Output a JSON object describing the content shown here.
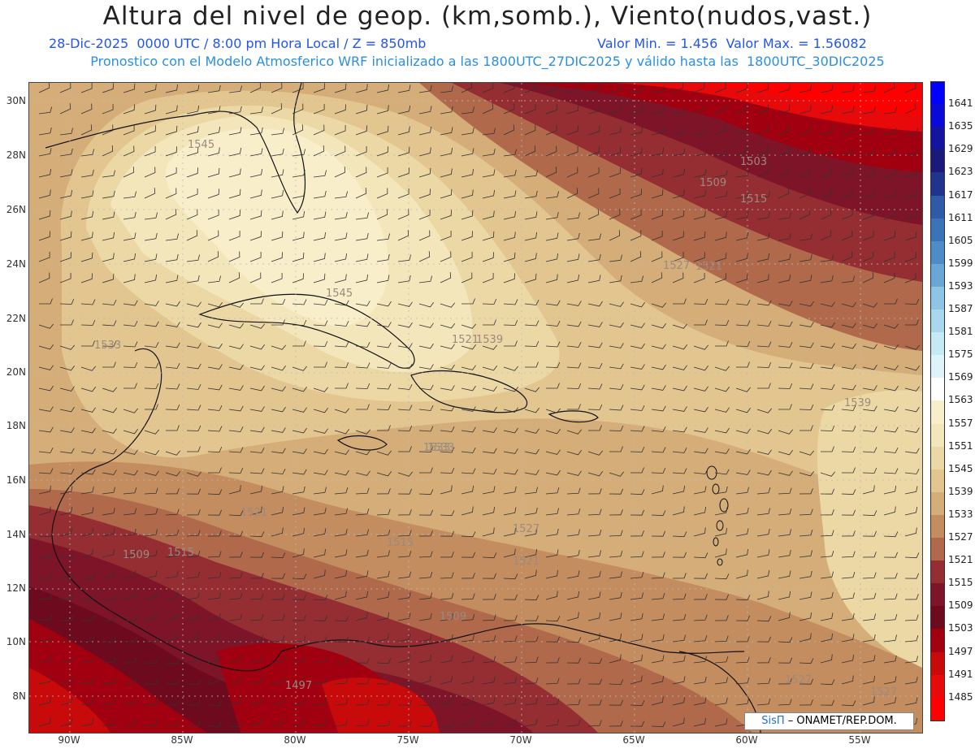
{
  "header": {
    "title": "Altura del nivel de geop. (km,somb.), Viento(nudos,vast.)",
    "line1_left": "28-Dic-2025  0000 UTC / 8:00 pm Hora Local / Z = 850mb",
    "line1_right": "Valor Min. = 1.456  Valor Max. = 1.56082",
    "line2": "Pronostico con el Modelo Atmosferico WRF inicializado a las 1800UTC_27DIC2025 y válido hasta las  1800UTC_30DIC2025"
  },
  "map": {
    "lat_labels": [
      "30N",
      "28N",
      "26N",
      "24N",
      "22N",
      "20N",
      "18N",
      "16N",
      "14N",
      "12N",
      "10N",
      "8N"
    ],
    "lon_labels": [
      "90W",
      "85W",
      "80W",
      "75W",
      "70W",
      "65W",
      "60W",
      "55W"
    ],
    "contour_labels": [
      "1545",
      "1545",
      "1539",
      "1539",
      "1533",
      "1533",
      "1527",
      "1527",
      "1521",
      "1521",
      "1521",
      "1515",
      "1515",
      "1515",
      "1509",
      "1509",
      "1509",
      "1503",
      "1497",
      "1527",
      "1527",
      "1533",
      "1521"
    ],
    "credit_brand": "SisΠ",
    "credit_text": "– ONAMET/REP.DOM."
  },
  "colorbar": {
    "levels": [
      "1641",
      "1635",
      "1629",
      "1623",
      "1617",
      "1611",
      "1605",
      "1599",
      "1593",
      "1587",
      "1581",
      "1575",
      "1569",
      "1563",
      "1557",
      "1551",
      "1545",
      "1539",
      "1533",
      "1527",
      "1521",
      "1515",
      "1509",
      "1503",
      "1497",
      "1491",
      "1485"
    ],
    "colors": [
      "#0000ff",
      "#0a0ad8",
      "#14149e",
      "#1a1a7a",
      "#22338c",
      "#2f5aa8",
      "#3c72b8",
      "#4e8cc8",
      "#6aa6d6",
      "#8ec4e4",
      "#a9d8ee",
      "#c5eaf4",
      "#dff4fa",
      "#ffffff",
      "#f8efca",
      "#f4e6bb",
      "#ecd8a4",
      "#e2c58f",
      "#d5ad78",
      "#c48d5f",
      "#b06a4b",
      "#952e33",
      "#7e1428",
      "#6d0a1e",
      "#a00010",
      "#c80a0a",
      "#e80a0a",
      "#ff0000"
    ]
  }
}
